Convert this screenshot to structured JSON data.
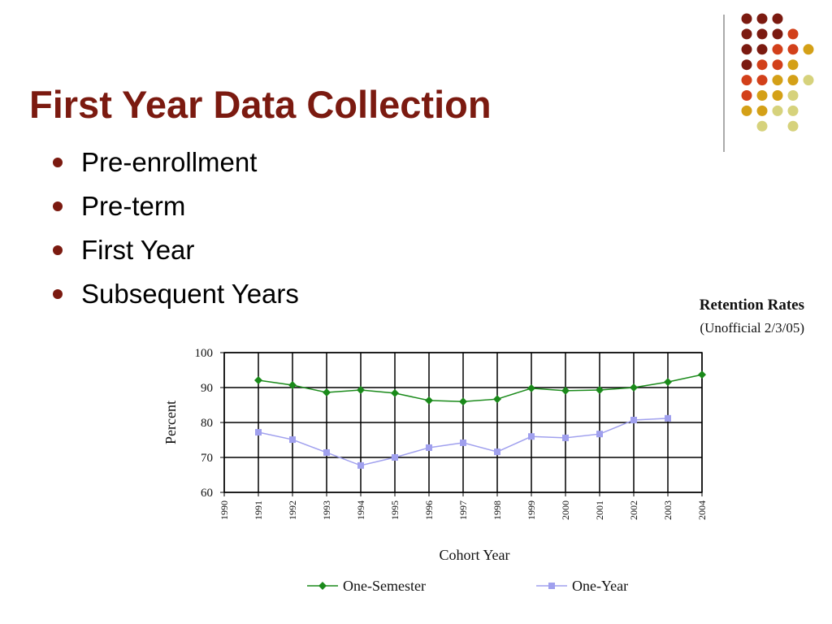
{
  "slide": {
    "title": "First Year Data Collection",
    "bullets": [
      "Pre-enrollment",
      "Pre-term",
      "First Year",
      "Subsequent Years"
    ]
  },
  "chart_data": {
    "type": "line",
    "title": "Retention Rates",
    "subtitle": "(Unofficial 2/3/05)",
    "x_label": "Cohort Year",
    "y_label": "Percent",
    "x": [
      1990,
      1991,
      1992,
      1993,
      1994,
      1995,
      1996,
      1997,
      1998,
      1999,
      2000,
      2001,
      2002,
      2003,
      2004
    ],
    "xlim": [
      1990,
      2004
    ],
    "xticks": [
      1990,
      1991,
      1992,
      1993,
      1994,
      1995,
      1996,
      1997,
      1998,
      1999,
      2000,
      2001,
      2002,
      2003,
      2004
    ],
    "ylim": [
      60,
      100
    ],
    "yticks": [
      60,
      70,
      80,
      90,
      100
    ],
    "grid": true,
    "legend": "bottom",
    "series": [
      {
        "name": "One-Semester",
        "color": "#1a8a1a",
        "marker": "diamond",
        "values": [
          null,
          92.1,
          90.7,
          88.6,
          89.3,
          88.4,
          86.3,
          86.0,
          86.7,
          89.8,
          89.1,
          89.3,
          90.0,
          91.6,
          93.7
        ]
      },
      {
        "name": "One-Year",
        "color": "#a0a0ee",
        "marker": "square",
        "values": [
          null,
          77.2,
          75.1,
          71.4,
          67.7,
          70.0,
          72.8,
          74.2,
          71.6,
          76.0,
          75.6,
          76.7,
          80.7,
          81.2,
          null
        ]
      }
    ]
  }
}
